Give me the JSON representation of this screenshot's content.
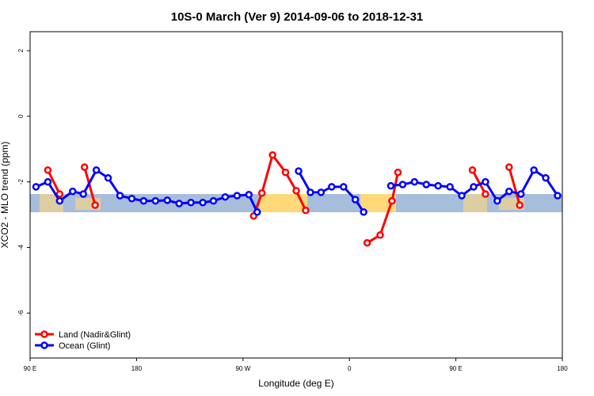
{
  "chart_data": {
    "type": "line",
    "title": "10S-0 March (Ver 9)   2014-09-06 to 2018-12-31",
    "xlabel": "Longitude (deg E)",
    "ylabel": "XCO2 - MLO trend (ppm)",
    "xlim": [
      90,
      540
    ],
    "ylim": [
      -7.37,
      2.58
    ],
    "xticks": [
      {
        "value": 90,
        "label": "90 E"
      },
      {
        "value": 180,
        "label": "180"
      },
      {
        "value": 270,
        "label": "90 W"
      },
      {
        "value": 360,
        "label": "0"
      },
      {
        "value": 450,
        "label": "90 E"
      },
      {
        "value": 540,
        "label": "180"
      }
    ],
    "yticks": [
      2,
      0,
      -2,
      -4,
      -6
    ],
    "legend": "bottom-left",
    "series": [
      {
        "name": "Land (Nadir&Glint)",
        "color": "#ff0000",
        "x": [
          105,
          115,
          null,
          136,
          145,
          null,
          279,
          286,
          295,
          306,
          315,
          323,
          null,
          375,
          386,
          396,
          401,
          null,
          464,
          475,
          null,
          495,
          504
        ],
        "values": [
          -1.64,
          -2.37,
          null,
          -1.55,
          -2.71,
          null,
          -3.04,
          -2.34,
          -1.18,
          -1.71,
          -2.27,
          -2.87,
          null,
          -3.86,
          -3.62,
          -2.58,
          -1.71,
          null,
          -1.64,
          -2.37,
          null,
          -1.55,
          -2.71
        ]
      },
      {
        "name": "Ocean (Glint)",
        "color": "#0000ff",
        "x": [
          95,
          105,
          115,
          126,
          135,
          146,
          156,
          166,
          176,
          186,
          196,
          206,
          216,
          226,
          236,
          245,
          255,
          265,
          275,
          282,
          null,
          317,
          327,
          336,
          345,
          355,
          365,
          372,
          null,
          395,
          405,
          415,
          425,
          435,
          445,
          455,
          465,
          475,
          485,
          495,
          505,
          516,
          526,
          536
        ],
        "values": [
          -2.15,
          -2.0,
          -2.58,
          -2.29,
          -2.37,
          -1.64,
          -1.88,
          -2.42,
          -2.51,
          -2.58,
          -2.58,
          -2.56,
          -2.66,
          -2.63,
          -2.63,
          -2.58,
          -2.46,
          -2.42,
          -2.39,
          -2.92,
          null,
          -1.67,
          -2.32,
          -2.32,
          -2.15,
          -2.15,
          -2.54,
          -2.92,
          null,
          -2.12,
          -2.08,
          -2.0,
          -2.08,
          -2.12,
          -2.15,
          -2.42,
          -2.15,
          -2.0,
          -2.58,
          -2.29,
          -2.37,
          -1.64,
          -1.88,
          -2.42
        ]
      }
    ]
  }
}
